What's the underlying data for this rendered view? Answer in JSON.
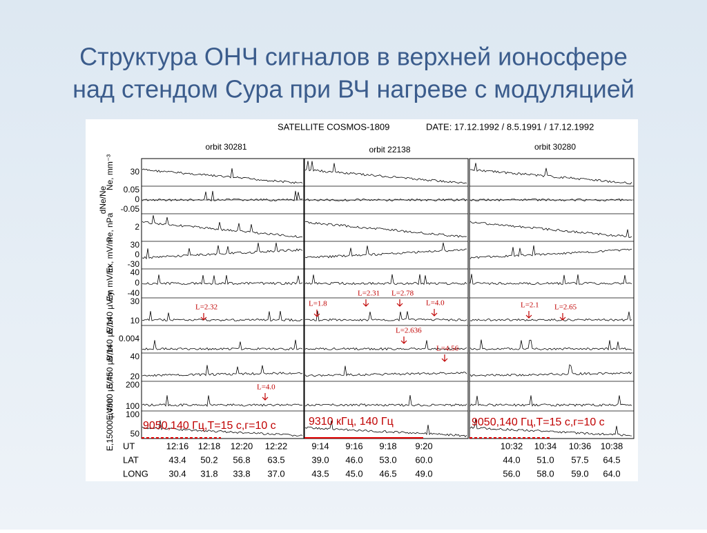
{
  "header": {
    "title_lines": [
      "Структура ОНЧ сигналов в верхней ионосфере",
      "над стендом Сура при ВЧ нагреве с модуляцией"
    ]
  },
  "figure": {
    "satellite": "SATELLITE  COSMOS-1809",
    "date": "DATE: 17.12.1992 / 8.5.1991 / 17.12.1992",
    "orbits": [
      "orbit  30281",
      "orbit  22138",
      "orbit  30280"
    ],
    "panels": [
      {
        "label": "Ne, mm⁻³",
        "ticks": [
          "30"
        ]
      },
      {
        "label": "dNe/Ne",
        "ticks": [
          "0.05",
          "0",
          "-0.05"
        ]
      },
      {
        "label": "Pe, nPa",
        "ticks": [
          "2"
        ]
      },
      {
        "label": "Ex, mV/m",
        "ticks": [
          "30",
          "0",
          "-30"
        ]
      },
      {
        "label": "Ey, mV/m",
        "ticks": [
          "40",
          "0",
          "-40"
        ]
      },
      {
        "label": "E,140 µV/m",
        "ticks": [
          "30",
          "10"
        ]
      },
      {
        "label": "B,140 µV/m",
        "ticks": [
          "0.004"
        ]
      },
      {
        "label": "E,450 µV/m",
        "ticks": [
          "40",
          "20"
        ]
      },
      {
        "label": "E,4600 µV/m",
        "ticks": [
          "200",
          "100"
        ]
      },
      {
        "label": "E,15000 µV/m",
        "ticks": [
          "100",
          "50"
        ]
      }
    ],
    "annotations": [
      "L=2.32",
      "L=4.0",
      "L=1.8",
      "L=2.31",
      "L=2.78",
      "L=4.0",
      "L=2.636",
      "L=4.56",
      "L=2.1",
      "L=2.65"
    ],
    "captions": [
      "9050,140 Гц,T=15 с,г=10 с",
      "9310 кГц, 140 Гц",
      "9050,140 Гц,T=15 с,г=10 с"
    ],
    "table": {
      "row_labels": [
        "UT",
        "LAT",
        "LONG"
      ],
      "groups": [
        [
          [
            "12:16",
            "12:18",
            "12:20",
            "12:22"
          ],
          [
            "43.4",
            "50.2",
            "56.8",
            "63.5"
          ],
          [
            "30.4",
            "31.8",
            "33.8",
            "37.0"
          ]
        ],
        [
          [
            "9:14",
            "9:16",
            "9:18",
            "9:20"
          ],
          [
            "39.0",
            "46.0",
            "53.0",
            "60.0"
          ],
          [
            "43.5",
            "45.0",
            "46.5",
            "49.0"
          ]
        ],
        [
          [
            "10:32",
            "10:34",
            "10:36",
            "10:38"
          ],
          [
            "44.0",
            "51.0",
            "57.5",
            "64.5"
          ],
          [
            "56.0",
            "58.0",
            "59.0",
            "64.0"
          ]
        ]
      ]
    }
  }
}
